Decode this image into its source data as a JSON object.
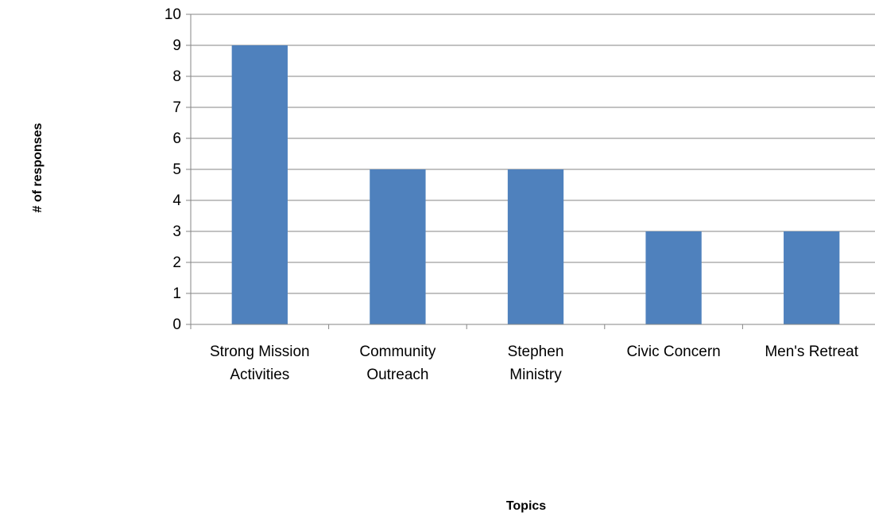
{
  "chart_data": {
    "type": "bar",
    "categories": [
      [
        "Strong Mission",
        "Activities"
      ],
      [
        "Community",
        "Outreach"
      ],
      [
        "Stephen",
        "Ministry"
      ],
      [
        "Civic Concern"
      ],
      [
        "Men's Retreat"
      ]
    ],
    "values": [
      9,
      5,
      5,
      3,
      3
    ],
    "xlabel": "Topics",
    "ylabel": "# of responses",
    "ylim": [
      0,
      10
    ],
    "yticks": [
      "0",
      "1",
      "2",
      "3",
      "4",
      "5",
      "6",
      "7",
      "8",
      "9",
      "10"
    ],
    "grid": true,
    "legend": "none",
    "colors": {
      "bar": "#4F81BD",
      "grid": "#868686",
      "axis": "#868686"
    }
  }
}
